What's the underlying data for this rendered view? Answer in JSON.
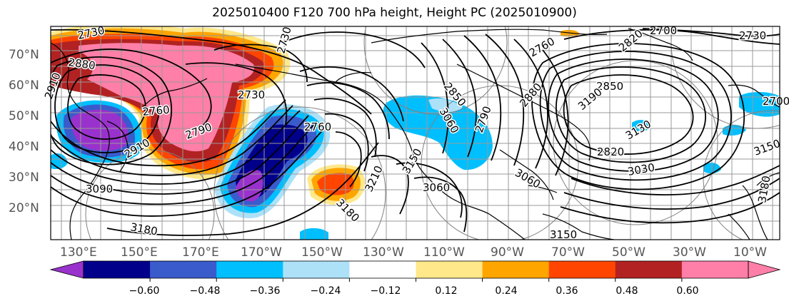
{
  "title": "2025010400 F120 700 hPa height, Height PC (2025010900)",
  "lat_labels": [
    "70°N",
    "60°N",
    "50°N",
    "40°N",
    "30°N",
    "20°N"
  ],
  "lon_labels": [
    "130°E",
    "150°E",
    "170°E",
    "170°W",
    "150°W",
    "130°W",
    "110°W",
    "90°W",
    "70°W",
    "50°W",
    "30°W",
    "10°W"
  ],
  "contour_labels": [
    "2730",
    "2880",
    "2910",
    "2760",
    "2730",
    "2790",
    "2910",
    "3090",
    "3180",
    "2760",
    "3210",
    "3180",
    "3150",
    "2850",
    "3060",
    "3060",
    "2700",
    "2730",
    "2820",
    "2850",
    "2820",
    "2880",
    "2790",
    "3130",
    "3030",
    "3180",
    "3150",
    "3190",
    "3060",
    "3150",
    "2760",
    "2730",
    "2700"
  ],
  "colorbar": {
    "ticks": [
      "−0.60",
      "−0.48",
      "−0.36",
      "−0.24",
      "−0.12",
      "0.12",
      "0.24",
      "0.36",
      "0.48",
      "0.60"
    ],
    "colors": [
      "#9932CC",
      "#00008B",
      "#3A5BCB",
      "#00BFFF",
      "#ADE1F8",
      "#FFFFFF",
      "#FFE88A",
      "#FFA500",
      "#FF4500",
      "#B22222",
      "#FF7FA8",
      "#FF7FA8"
    ]
  },
  "colors": {
    "purple": "#9932CC",
    "navy": "#00008B",
    "blue": "#3A5BCB",
    "cyan": "#00BFFF",
    "lightblue": "#ADE1F8",
    "yellow": "#FFE88A",
    "orange": "#FFA500",
    "redorange": "#FF4500",
    "firebrick": "#B22222",
    "pink": "#FF7FA8"
  }
}
